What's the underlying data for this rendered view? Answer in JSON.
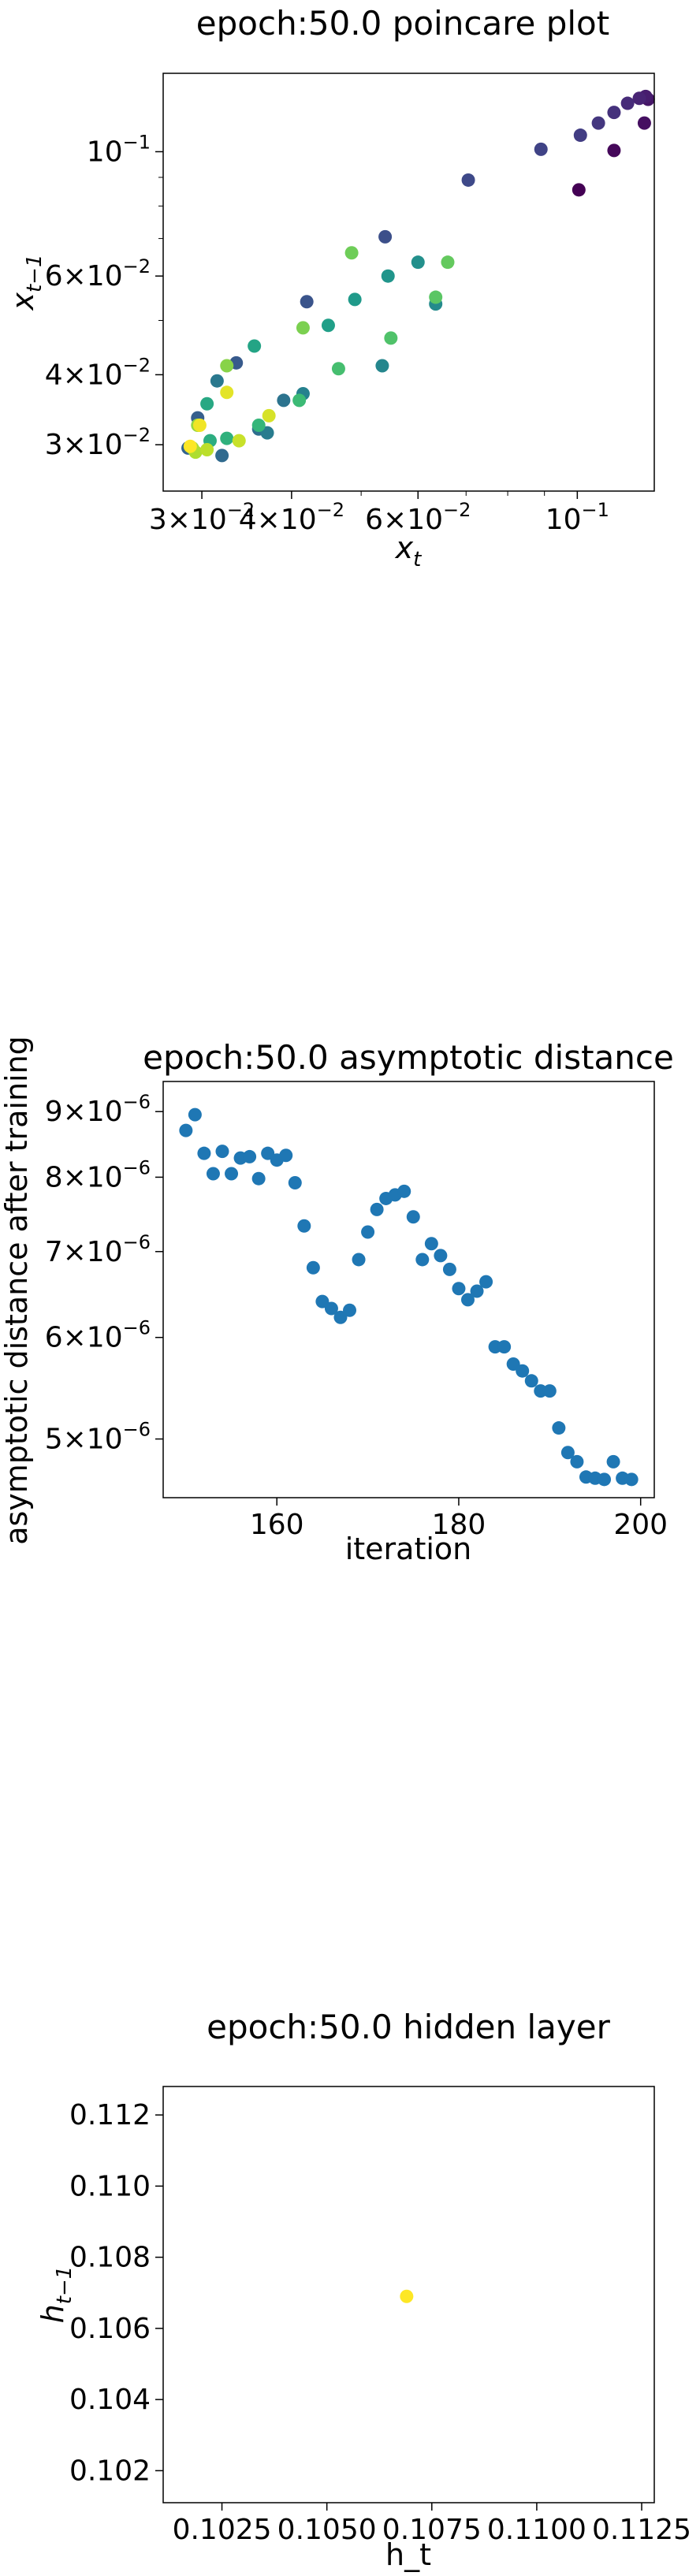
{
  "chart_data": [
    {
      "type": "scatter",
      "title": "epoch:50.0 poincare plot",
      "xlabel": "x",
      "xlabel_sub": "t",
      "ylabel": "x",
      "ylabel_sub": "t−1",
      "xscale": "log",
      "yscale": "log",
      "xlim": [
        0.0265,
        0.128
      ],
      "ylim": [
        0.0248,
        0.138
      ],
      "x_ticks": [
        {
          "value": 0.03,
          "base": "3×10",
          "exp": "−2"
        },
        {
          "value": 0.04,
          "base": "4×10",
          "exp": "−2"
        },
        {
          "value": 0.06,
          "base": "6×10",
          "exp": "−2"
        },
        {
          "value": 0.1,
          "base": "10",
          "exp": "−1"
        }
      ],
      "y_ticks": [
        {
          "value": 0.03,
          "base": "3×10",
          "exp": "−2"
        },
        {
          "value": 0.04,
          "base": "4×10",
          "exp": "−2"
        },
        {
          "value": 0.06,
          "base": "6×10",
          "exp": "−2"
        },
        {
          "value": 0.1,
          "base": "10",
          "exp": "−1"
        }
      ],
      "colormap": "viridis",
      "points": [
        {
          "x": 0.1005,
          "y": 0.0855,
          "c": 0.0
        },
        {
          "x": 0.1125,
          "y": 0.1005,
          "c": 0.02
        },
        {
          "x": 0.124,
          "y": 0.1125,
          "c": 0.04
        },
        {
          "x": 0.1255,
          "y": 0.124,
          "c": 0.06
        },
        {
          "x": 0.1245,
          "y": 0.1255,
          "c": 0.08
        },
        {
          "x": 0.122,
          "y": 0.1245,
          "c": 0.1
        },
        {
          "x": 0.1175,
          "y": 0.122,
          "c": 0.12
        },
        {
          "x": 0.1125,
          "y": 0.1175,
          "c": 0.14
        },
        {
          "x": 0.107,
          "y": 0.1125,
          "c": 0.16
        },
        {
          "x": 0.101,
          "y": 0.107,
          "c": 0.18
        },
        {
          "x": 0.089,
          "y": 0.101,
          "c": 0.2
        },
        {
          "x": 0.0705,
          "y": 0.089,
          "c": 0.22
        },
        {
          "x": 0.054,
          "y": 0.0705,
          "c": 0.24
        },
        {
          "x": 0.042,
          "y": 0.054,
          "c": 0.26
        },
        {
          "x": 0.0335,
          "y": 0.042,
          "c": 0.28
        },
        {
          "x": 0.0296,
          "y": 0.0335,
          "c": 0.3
        },
        {
          "x": 0.0287,
          "y": 0.0296,
          "c": 0.32
        },
        {
          "x": 0.032,
          "y": 0.0287,
          "c": 0.34
        },
        {
          "x": 0.036,
          "y": 0.032,
          "c": 0.36
        },
        {
          "x": 0.039,
          "y": 0.036,
          "c": 0.38
        },
        {
          "x": 0.0315,
          "y": 0.039,
          "c": 0.4
        },
        {
          "x": 0.037,
          "y": 0.0315,
          "c": 0.42
        },
        {
          "x": 0.0415,
          "y": 0.037,
          "c": 0.44
        },
        {
          "x": 0.0535,
          "y": 0.0415,
          "c": 0.46
        },
        {
          "x": 0.0635,
          "y": 0.0535,
          "c": 0.48
        },
        {
          "x": 0.06,
          "y": 0.0635,
          "c": 0.5
        },
        {
          "x": 0.0545,
          "y": 0.06,
          "c": 0.52
        },
        {
          "x": 0.049,
          "y": 0.0545,
          "c": 0.54
        },
        {
          "x": 0.045,
          "y": 0.049,
          "c": 0.56
        },
        {
          "x": 0.0355,
          "y": 0.045,
          "c": 0.58
        },
        {
          "x": 0.0305,
          "y": 0.0355,
          "c": 0.6
        },
        {
          "x": 0.0308,
          "y": 0.0305,
          "c": 0.62
        },
        {
          "x": 0.0325,
          "y": 0.0308,
          "c": 0.64
        },
        {
          "x": 0.036,
          "y": 0.0325,
          "c": 0.66
        },
        {
          "x": 0.041,
          "y": 0.036,
          "c": 0.68
        },
        {
          "x": 0.0465,
          "y": 0.041,
          "c": 0.7
        },
        {
          "x": 0.055,
          "y": 0.0465,
          "c": 0.72
        },
        {
          "x": 0.0635,
          "y": 0.055,
          "c": 0.74
        },
        {
          "x": 0.066,
          "y": 0.0635,
          "c": 0.76
        },
        {
          "x": 0.0485,
          "y": 0.066,
          "c": 0.78
        },
        {
          "x": 0.0415,
          "y": 0.0485,
          "c": 0.8
        },
        {
          "x": 0.0325,
          "y": 0.0415,
          "c": 0.82
        },
        {
          "x": 0.0296,
          "y": 0.0325,
          "c": 0.84
        },
        {
          "x": 0.0291,
          "y": 0.0296,
          "c": 0.86
        },
        {
          "x": 0.0294,
          "y": 0.0291,
          "c": 0.88
        },
        {
          "x": 0.0305,
          "y": 0.0294,
          "c": 0.9
        },
        {
          "x": 0.0338,
          "y": 0.0305,
          "c": 0.92
        },
        {
          "x": 0.0372,
          "y": 0.0338,
          "c": 0.94
        },
        {
          "x": 0.0325,
          "y": 0.0372,
          "c": 0.96
        },
        {
          "x": 0.0298,
          "y": 0.0325,
          "c": 0.98
        },
        {
          "x": 0.0289,
          "y": 0.0298,
          "c": 1.0
        }
      ]
    },
    {
      "type": "scatter",
      "title": "epoch:50.0 asymptotic distance",
      "xlabel": "iteration",
      "ylabel": "asymptotic distance after training",
      "yscale": "log",
      "xlim": [
        147.5,
        201.5
      ],
      "ylim": [
        4.5e-06,
        9.5e-06
      ],
      "x_ticks": [
        160,
        180,
        200
      ],
      "y_ticks": [
        {
          "value": 5e-06,
          "base": "5×10",
          "exp": "−6"
        },
        {
          "value": 6e-06,
          "base": "6×10",
          "exp": "−6"
        },
        {
          "value": 7e-06,
          "base": "7×10",
          "exp": "−6"
        },
        {
          "value": 8e-06,
          "base": "8×10",
          "exp": "−6"
        },
        {
          "value": 9e-06,
          "base": "9×10",
          "exp": "−6"
        }
      ],
      "color": "#1f77b4",
      "x": [
        150,
        151,
        152,
        153,
        154,
        155,
        156,
        157,
        158,
        159,
        160,
        161,
        162,
        163,
        164,
        165,
        166,
        167,
        168,
        169,
        170,
        171,
        172,
        173,
        174,
        175,
        176,
        177,
        178,
        179,
        180,
        181,
        182,
        183,
        184,
        185,
        186,
        187,
        188,
        189,
        190,
        191,
        192,
        193,
        194,
        195,
        196,
        197,
        198,
        199
      ],
      "y": [
        8.7e-06,
        8.95e-06,
        8.35e-06,
        8.05e-06,
        8.38e-06,
        8.05e-06,
        8.28e-06,
        8.3e-06,
        7.98e-06,
        8.35e-06,
        8.25e-06,
        8.32e-06,
        7.92e-06,
        7.33e-06,
        6.8e-06,
        6.4e-06,
        6.32e-06,
        6.22e-06,
        6.3e-06,
        6.9e-06,
        7.25e-06,
        7.55e-06,
        7.7e-06,
        7.75e-06,
        7.8e-06,
        7.45e-06,
        6.9e-06,
        7.1e-06,
        6.95e-06,
        6.78e-06,
        6.55e-06,
        6.42e-06,
        6.52e-06,
        6.63e-06,
        5.9e-06,
        5.9e-06,
        5.72e-06,
        5.65e-06,
        5.55e-06,
        5.45e-06,
        5.45e-06,
        5.1e-06,
        4.88e-06,
        4.8e-06,
        4.67e-06,
        4.66e-06,
        4.65e-06,
        4.8e-06,
        4.66e-06,
        4.65e-06
      ]
    },
    {
      "type": "scatter",
      "title": "epoch:50.0 hidden layer",
      "xlabel": "h_t",
      "ylabel": "h",
      "ylabel_sub": "t−1",
      "xlim": [
        0.1011,
        0.1128
      ],
      "ylim": [
        0.1011,
        0.1128
      ],
      "x_ticks": [
        {
          "value": 0.1025,
          "label": "0.1025"
        },
        {
          "value": 0.105,
          "label": "0.1050"
        },
        {
          "value": 0.1075,
          "label": "0.1075"
        },
        {
          "value": 0.11,
          "label": "0.1100"
        },
        {
          "value": 0.1125,
          "label": "0.1125"
        }
      ],
      "y_ticks": [
        {
          "value": 0.102,
          "label": "0.102"
        },
        {
          "value": 0.104,
          "label": "0.104"
        },
        {
          "value": 0.106,
          "label": "0.106"
        },
        {
          "value": 0.108,
          "label": "0.108"
        },
        {
          "value": 0.11,
          "label": "0.110"
        },
        {
          "value": 0.112,
          "label": "0.112"
        }
      ],
      "points": [
        {
          "x": 0.1069,
          "y": 0.1069,
          "color": "#fde725"
        }
      ]
    }
  ]
}
